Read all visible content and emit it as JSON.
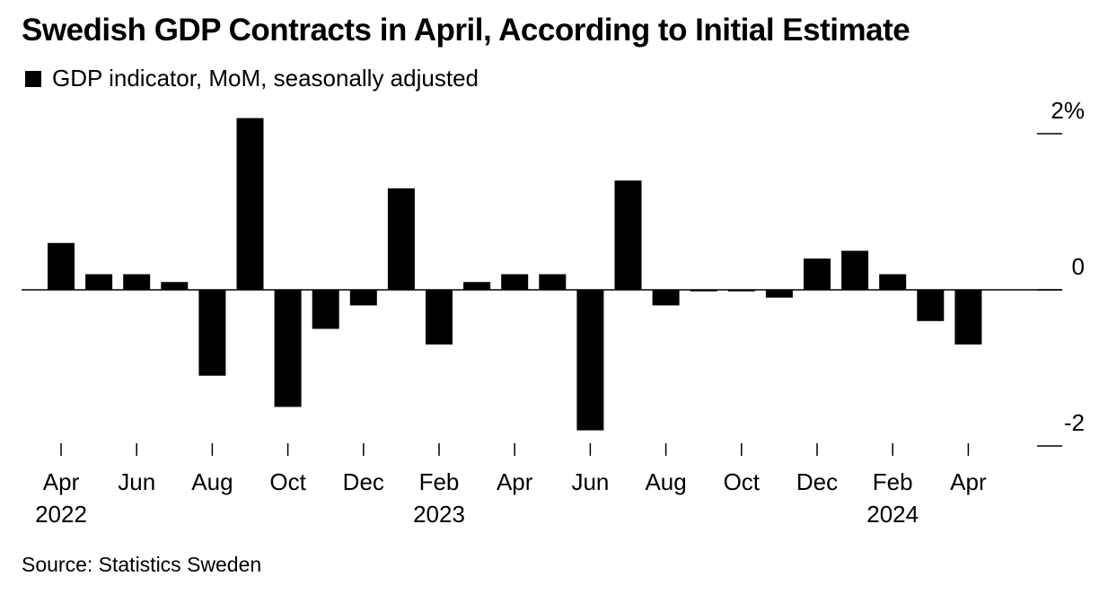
{
  "title": "Swedish GDP Contracts in April, According to Initial Estimate",
  "source": "Source: Statistics Sweden",
  "colors": {
    "bar": "#000000",
    "axis": "#000000",
    "background": "#ffffff"
  },
  "chart_data": {
    "type": "bar",
    "legend": {
      "label": "GDP indicator, MoM, seasonally adjusted",
      "placement": "top-left"
    },
    "categories": [
      "2022-04",
      "2022-05",
      "2022-06",
      "2022-07",
      "2022-08",
      "2022-09",
      "2022-10",
      "2022-11",
      "2022-12",
      "2023-01",
      "2023-02",
      "2023-03",
      "2023-04",
      "2023-05",
      "2023-06",
      "2023-07",
      "2023-08",
      "2023-09",
      "2023-10",
      "2023-11",
      "2023-12",
      "2024-01",
      "2024-02",
      "2024-03",
      "2024-04"
    ],
    "series": [
      {
        "name": "GDP indicator, MoM, seasonally adjusted",
        "values": [
          0.6,
          0.2,
          0.2,
          0.1,
          -1.1,
          2.2,
          -1.5,
          -0.5,
          -0.2,
          1.3,
          -0.7,
          0.1,
          0.2,
          0.2,
          -1.8,
          1.4,
          -0.2,
          -0.02,
          -0.02,
          -0.1,
          0.4,
          0.5,
          0.2,
          -0.4,
          -0.7
        ]
      }
    ],
    "ylim": [
      -2.2,
      2.3
    ],
    "yticks": [
      {
        "value": 2,
        "label": "2%"
      },
      {
        "value": 0,
        "label": "0"
      },
      {
        "value": -2,
        "label": "-2"
      }
    ],
    "xticks": [
      {
        "index": 0,
        "month": "Apr",
        "year": "2022"
      },
      {
        "index": 2,
        "month": "Jun",
        "year": ""
      },
      {
        "index": 4,
        "month": "Aug",
        "year": ""
      },
      {
        "index": 6,
        "month": "Oct",
        "year": ""
      },
      {
        "index": 8,
        "month": "Dec",
        "year": ""
      },
      {
        "index": 10,
        "month": "Feb",
        "year": "2023"
      },
      {
        "index": 12,
        "month": "Apr",
        "year": ""
      },
      {
        "index": 14,
        "month": "Jun",
        "year": ""
      },
      {
        "index": 16,
        "month": "Aug",
        "year": ""
      },
      {
        "index": 18,
        "month": "Oct",
        "year": ""
      },
      {
        "index": 20,
        "month": "Dec",
        "year": ""
      },
      {
        "index": 22,
        "month": "Feb",
        "year": "2024"
      },
      {
        "index": 24,
        "month": "Apr",
        "year": ""
      }
    ],
    "y_axis_position": "right",
    "grid": false
  }
}
